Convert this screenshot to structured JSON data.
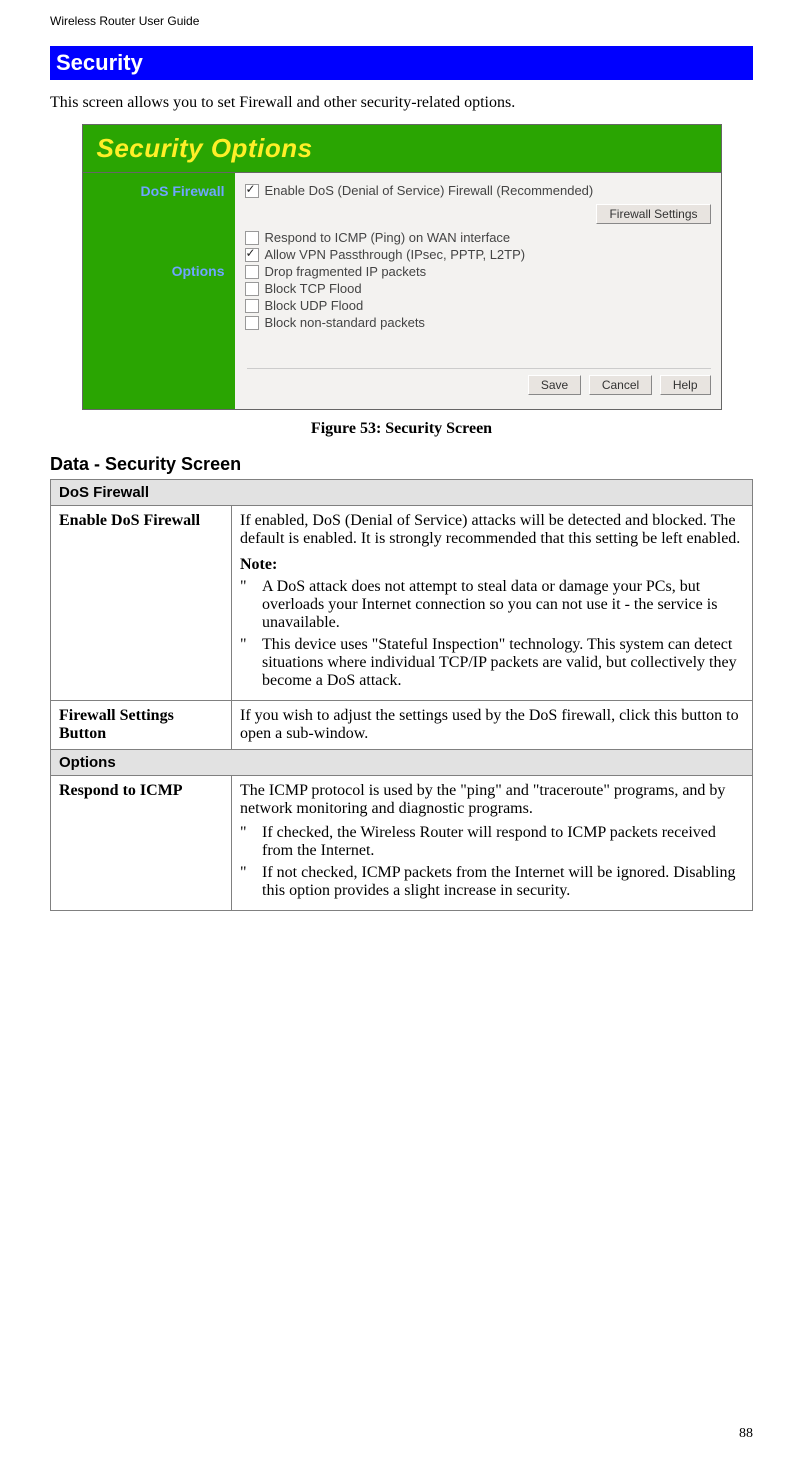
{
  "header": {
    "text": "Wireless Router User Guide"
  },
  "section": {
    "title": "Security"
  },
  "intro": {
    "text": "This screen allows you to set Firewall and other security-related options."
  },
  "figure": {
    "panel_title": "Security Options",
    "side_labels": {
      "dos": "DoS Firewall",
      "options": "Options"
    },
    "dos_line": "Enable DoS (Denial of Service) Firewall (Recommended)",
    "firewall_settings_btn": "Firewall Settings",
    "options_list": [
      {
        "label": "Respond to ICMP (Ping) on WAN interface",
        "checked": false
      },
      {
        "label": "Allow VPN Passthrough (IPsec, PPTP, L2TP)",
        "checked": true
      },
      {
        "label": "Drop fragmented IP packets",
        "checked": false
      },
      {
        "label": "Block TCP Flood",
        "checked": false
      },
      {
        "label": "Block UDP Flood",
        "checked": false
      },
      {
        "label": "Block non-standard packets",
        "checked": false
      }
    ],
    "action_buttons": {
      "save": "Save",
      "cancel": "Cancel",
      "help": "Help"
    },
    "caption": "Figure 53: Security Screen"
  },
  "datatable": {
    "heading": "Data - Security Screen",
    "sections": {
      "dos_header": "DoS Firewall",
      "options_header": "Options"
    },
    "rows": {
      "enable_dos": {
        "label": "Enable DoS Firewall",
        "para": "If enabled, DoS (Denial of Service) attacks will be detected and blocked. The default is enabled. It is strongly recommended that this setting be left enabled.",
        "note_label": "Note:",
        "bullets": [
          "A DoS attack does not attempt to steal data or damage your PCs, but overloads your Internet connection so you can not use it - the service is unavailable.",
          "This device uses \"Stateful Inspection\" technology. This system can detect situations where individual TCP/IP packets are valid, but collectively they become a DoS attack."
        ]
      },
      "fw_settings": {
        "label": "Firewall Settings Button",
        "para": "If you wish to adjust the settings used by the DoS firewall, click this button to open a sub-window."
      },
      "icmp": {
        "label": "Respond to ICMP",
        "para": "The ICMP protocol is used by the \"ping\" and \"traceroute\" programs, and by network monitoring and diagnostic programs.",
        "bullets": [
          "If checked, the Wireless Router will respond to ICMP packets received from the Internet.",
          "If not checked, ICMP packets from the Internet will be ignored. Disabling this option provides a slight increase in security."
        ]
      }
    },
    "bullet_marker": "\""
  },
  "page_number": "88",
  "colors": {
    "blue_bar": "#0000ff",
    "green_bg": "#2aa502",
    "yellow_text": "#feef28",
    "side_link": "#6fa5ff",
    "panel_bg": "#f3f2f0",
    "table_header_bg": "#e2e2e2"
  }
}
